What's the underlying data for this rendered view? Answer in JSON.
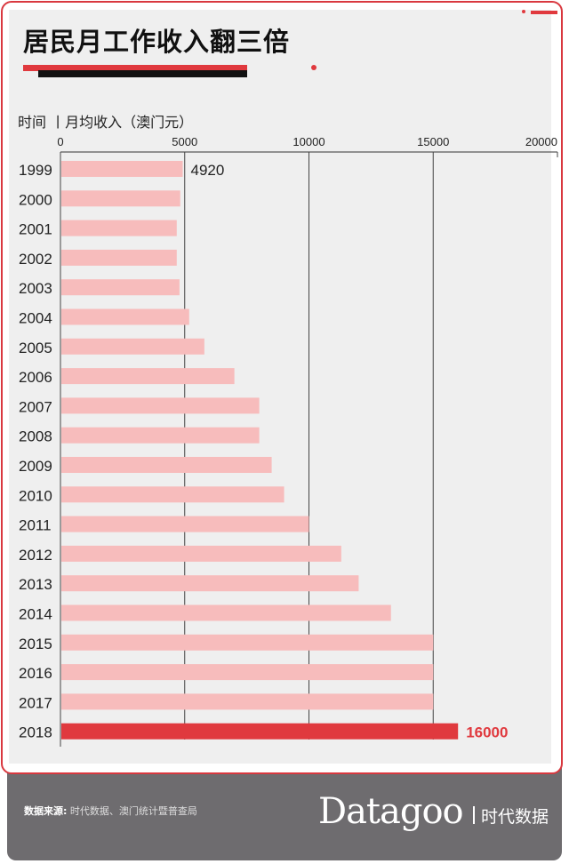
{
  "title": "居民月工作收入翻三倍",
  "subtitle": "时间 丨月均收入（澳门元）",
  "footer": {
    "source_label": "数据来源:",
    "source_text": "时代数据、澳门统计暨普查局",
    "logo": "Datagoo",
    "logo_cn": "时代数据"
  },
  "colors": {
    "bar": "#f7bcbc",
    "highlight": "#e0393e",
    "accent": "#d9383f",
    "footer": "#6e6c6f"
  },
  "chart_data": {
    "type": "bar",
    "orientation": "horizontal",
    "xlim": [
      0,
      20000
    ],
    "xticks": [
      "0",
      "5000",
      "10000",
      "15000",
      "20000"
    ],
    "grid": true,
    "categories": [
      "1999",
      "2000",
      "2001",
      "2002",
      "2003",
      "2004",
      "2005",
      "2006",
      "2007",
      "2008",
      "2009",
      "2010",
      "2011",
      "2012",
      "2013",
      "2014",
      "2015",
      "2016",
      "2017",
      "2018"
    ],
    "values": [
      4920,
      4820,
      4680,
      4680,
      4790,
      5180,
      5790,
      7000,
      8000,
      8000,
      8500,
      9000,
      10000,
      11300,
      12000,
      13300,
      15000,
      15000,
      15000,
      16000
    ],
    "data_labels": {
      "1999": "4920",
      "2018": "16000"
    },
    "highlight": "2018"
  }
}
